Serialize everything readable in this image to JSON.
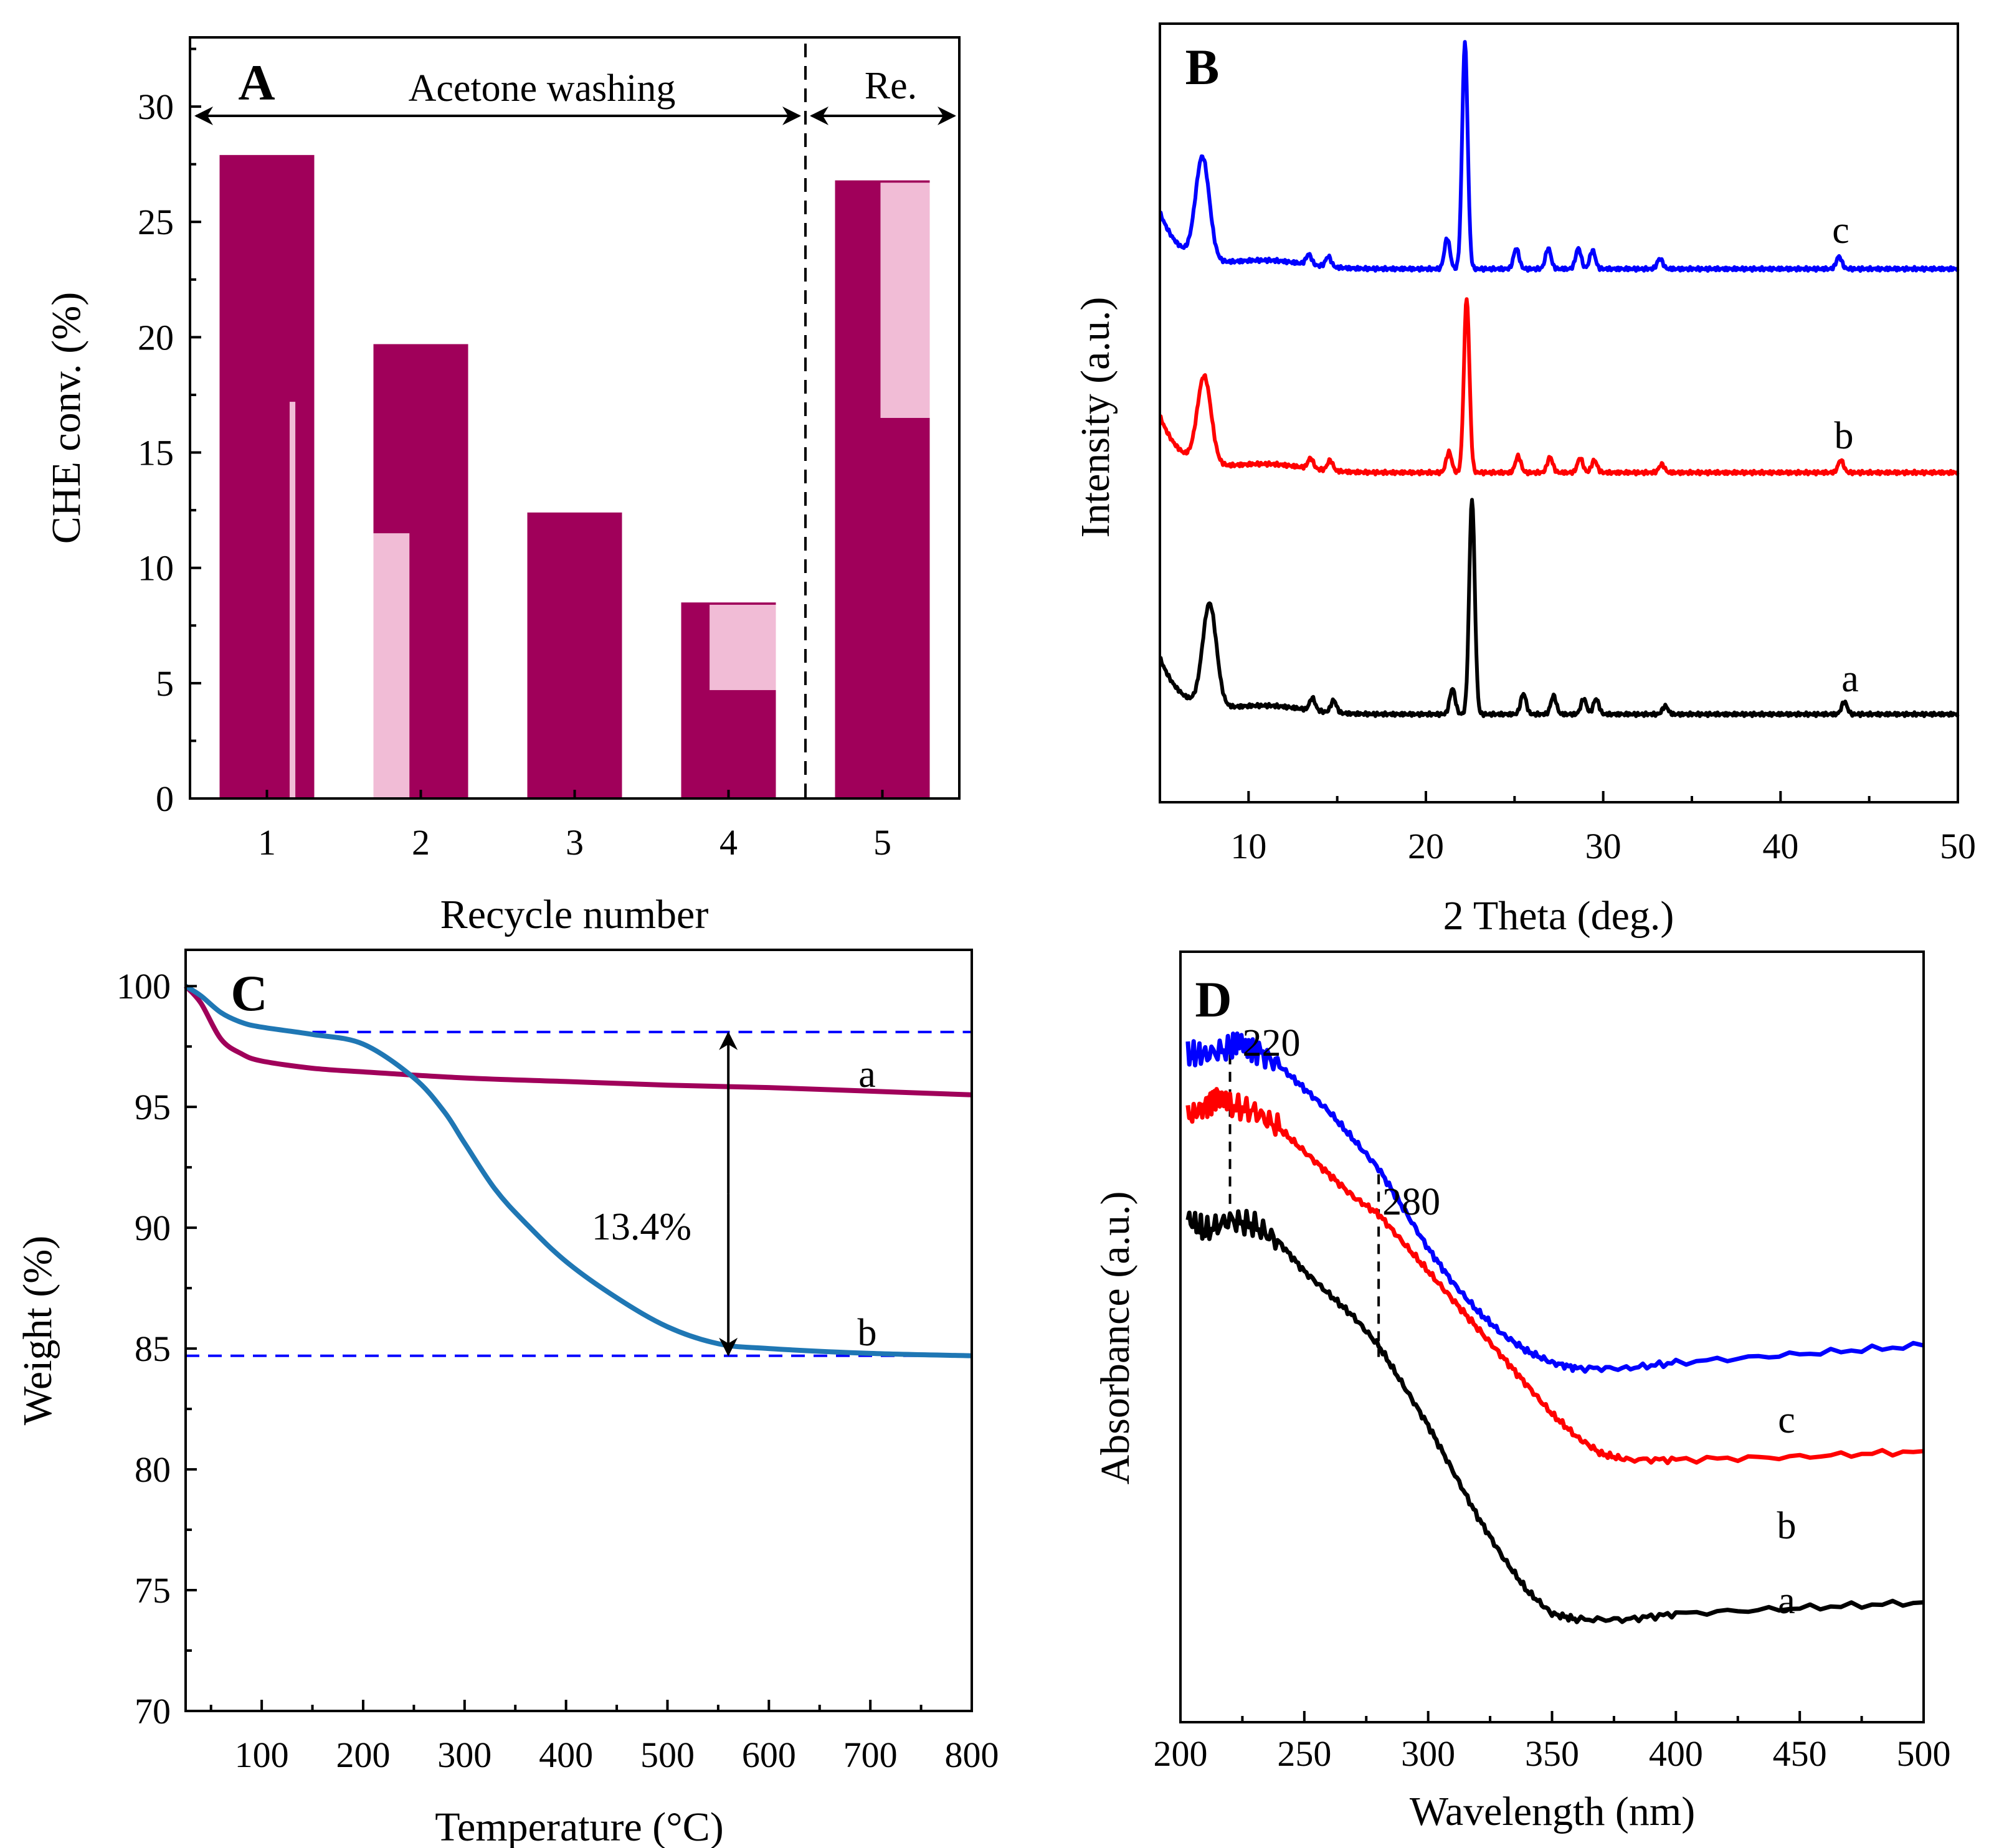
{
  "figure": {
    "panels": [
      "A",
      "B",
      "C",
      "D"
    ]
  },
  "colors": {
    "bar_fill": "#a0005a",
    "bar_light": "#f1bcd6",
    "line_blue": "#0000ff",
    "line_red": "#ff0000",
    "line_black": "#000000",
    "line_maroon": "#a0005a",
    "line_teal": "#1f77b4"
  },
  "chart_data": [
    {
      "panel": "A",
      "type": "bar",
      "title": "",
      "xlabel": "Recycle number",
      "ylabel": "CHE conv. (%)",
      "categories": [
        "1",
        "2",
        "3",
        "4",
        "5"
      ],
      "values": [
        27.9,
        19.7,
        12.4,
        8.5,
        26.8
      ],
      "yticks": [
        0,
        5,
        10,
        15,
        20,
        25,
        30
      ],
      "ylim": [
        0,
        33
      ],
      "xlim": [
        0.5,
        5.5
      ],
      "section_divider_x": 4.5,
      "annotations": {
        "left_section": "Acetone washing",
        "right_section": "Re."
      }
    },
    {
      "panel": "B",
      "type": "line",
      "title": "",
      "xlabel": "2 Theta (deg.)",
      "ylabel": "Intensity (a.u.)",
      "xticks": [
        10,
        20,
        30,
        40,
        50
      ],
      "xlim": [
        5,
        50
      ],
      "series": [
        {
          "name": "a",
          "color": "#000000",
          "offset": 0.0,
          "peaks": [
            [
              7.8,
              1.0
            ],
            [
              13.6,
              0.12
            ],
            [
              14.8,
              0.12
            ],
            [
              21.5,
              0.25
            ],
            [
              22.6,
              2.1
            ],
            [
              25.5,
              0.2
            ],
            [
              27.2,
              0.18
            ],
            [
              28.9,
              0.15
            ],
            [
              29.6,
              0.15
            ],
            [
              33.5,
              0.08
            ],
            [
              43.6,
              0.12
            ]
          ]
        },
        {
          "name": "b",
          "color": "#ff0000",
          "offset": 1.55,
          "peaks": [
            [
              7.5,
              0.85
            ],
            [
              13.5,
              0.1
            ],
            [
              14.6,
              0.1
            ],
            [
              21.3,
              0.2
            ],
            [
              22.3,
              1.7
            ],
            [
              25.2,
              0.16
            ],
            [
              27.0,
              0.15
            ],
            [
              28.7,
              0.14
            ],
            [
              29.5,
              0.12
            ],
            [
              33.3,
              0.08
            ],
            [
              43.4,
              0.12
            ]
          ]
        },
        {
          "name": "c",
          "color": "#0000ff",
          "offset": 2.9,
          "peaks": [
            [
              7.4,
              1.0
            ],
            [
              13.4,
              0.1
            ],
            [
              14.5,
              0.1
            ],
            [
              21.2,
              0.3
            ],
            [
              22.2,
              2.2
            ],
            [
              25.1,
              0.2
            ],
            [
              26.9,
              0.2
            ],
            [
              28.6,
              0.2
            ],
            [
              29.4,
              0.18
            ],
            [
              33.2,
              0.1
            ],
            [
              43.3,
              0.12
            ]
          ]
        }
      ]
    },
    {
      "panel": "C",
      "type": "line",
      "title": "",
      "xlabel": "Temperature (°C)",
      "ylabel": "Weight (%)",
      "xticks": [
        100,
        200,
        300,
        400,
        500,
        600,
        700,
        800
      ],
      "yticks": [
        70,
        75,
        80,
        85,
        90,
        95,
        100
      ],
      "xlim": [
        25,
        800
      ],
      "ylim": [
        70,
        101.5
      ],
      "series": [
        {
          "name": "a",
          "color": "#a0005a",
          "x": [
            25,
            40,
            60,
            80,
            100,
            150,
            200,
            300,
            400,
            500,
            600,
            700,
            800
          ],
          "y": [
            100,
            99.3,
            97.8,
            97.2,
            96.9,
            96.6,
            96.45,
            96.2,
            96.05,
            95.9,
            95.8,
            95.65,
            95.5
          ]
        },
        {
          "name": "b",
          "color": "#1f77b4",
          "x": [
            25,
            40,
            60,
            80,
            100,
            150,
            200,
            250,
            280,
            300,
            330,
            360,
            400,
            450,
            500,
            550,
            600,
            700,
            800
          ],
          "y": [
            100,
            99.6,
            98.9,
            98.5,
            98.3,
            98.0,
            97.6,
            96.2,
            94.8,
            93.5,
            91.6,
            90.2,
            88.6,
            87.1,
            85.9,
            85.2,
            85.0,
            84.8,
            84.7
          ]
        }
      ],
      "reference_lines": [
        98.1,
        84.7
      ],
      "arrow_x": 560,
      "annotations": {
        "delta": "13.4%"
      }
    },
    {
      "panel": "D",
      "type": "line",
      "title": "",
      "xlabel": "Wavelength (nm)",
      "ylabel": "Absorbance (a.u.)",
      "xticks": [
        200,
        250,
        300,
        350,
        400,
        450,
        500
      ],
      "xlim": [
        200,
        500
      ],
      "markers": [
        {
          "x": 220,
          "label": "220"
        },
        {
          "x": 280,
          "label": "280"
        }
      ],
      "series": [
        {
          "name": "a",
          "color": "#000000",
          "x": [
            203,
            210,
            220,
            230,
            240,
            250,
            260,
            270,
            280,
            290,
            300,
            310,
            320,
            330,
            340,
            350,
            360,
            380,
            400,
            450,
            500
          ],
          "y": [
            0.88,
            0.86,
            0.88,
            0.87,
            0.84,
            0.79,
            0.75,
            0.71,
            0.66,
            0.59,
            0.52,
            0.44,
            0.36,
            0.29,
            0.23,
            0.19,
            0.18,
            0.18,
            0.19,
            0.2,
            0.21
          ]
        },
        {
          "name": "b",
          "color": "#ff0000",
          "x": [
            203,
            210,
            215,
            220,
            230,
            240,
            250,
            260,
            270,
            280,
            290,
            300,
            310,
            320,
            330,
            340,
            350,
            360,
            370,
            380,
            400,
            450,
            500
          ],
          "y": [
            1.06,
            1.08,
            1.1,
            1.08,
            1.07,
            1.04,
            1.0,
            0.96,
            0.92,
            0.89,
            0.84,
            0.79,
            0.74,
            0.69,
            0.64,
            0.59,
            0.54,
            0.5,
            0.47,
            0.46,
            0.46,
            0.465,
            0.475
          ]
        },
        {
          "name": "c",
          "color": "#0000ff",
          "x": [
            203,
            210,
            220,
            225,
            230,
            240,
            250,
            260,
            270,
            280,
            290,
            300,
            310,
            320,
            330,
            340,
            350,
            360,
            380,
            400,
            450,
            500
          ],
          "y": [
            1.17,
            1.17,
            1.18,
            1.19,
            1.18,
            1.15,
            1.11,
            1.07,
            1.02,
            0.97,
            0.9,
            0.83,
            0.77,
            0.72,
            0.68,
            0.65,
            0.63,
            0.62,
            0.62,
            0.63,
            0.645,
            0.66
          ]
        }
      ]
    }
  ]
}
